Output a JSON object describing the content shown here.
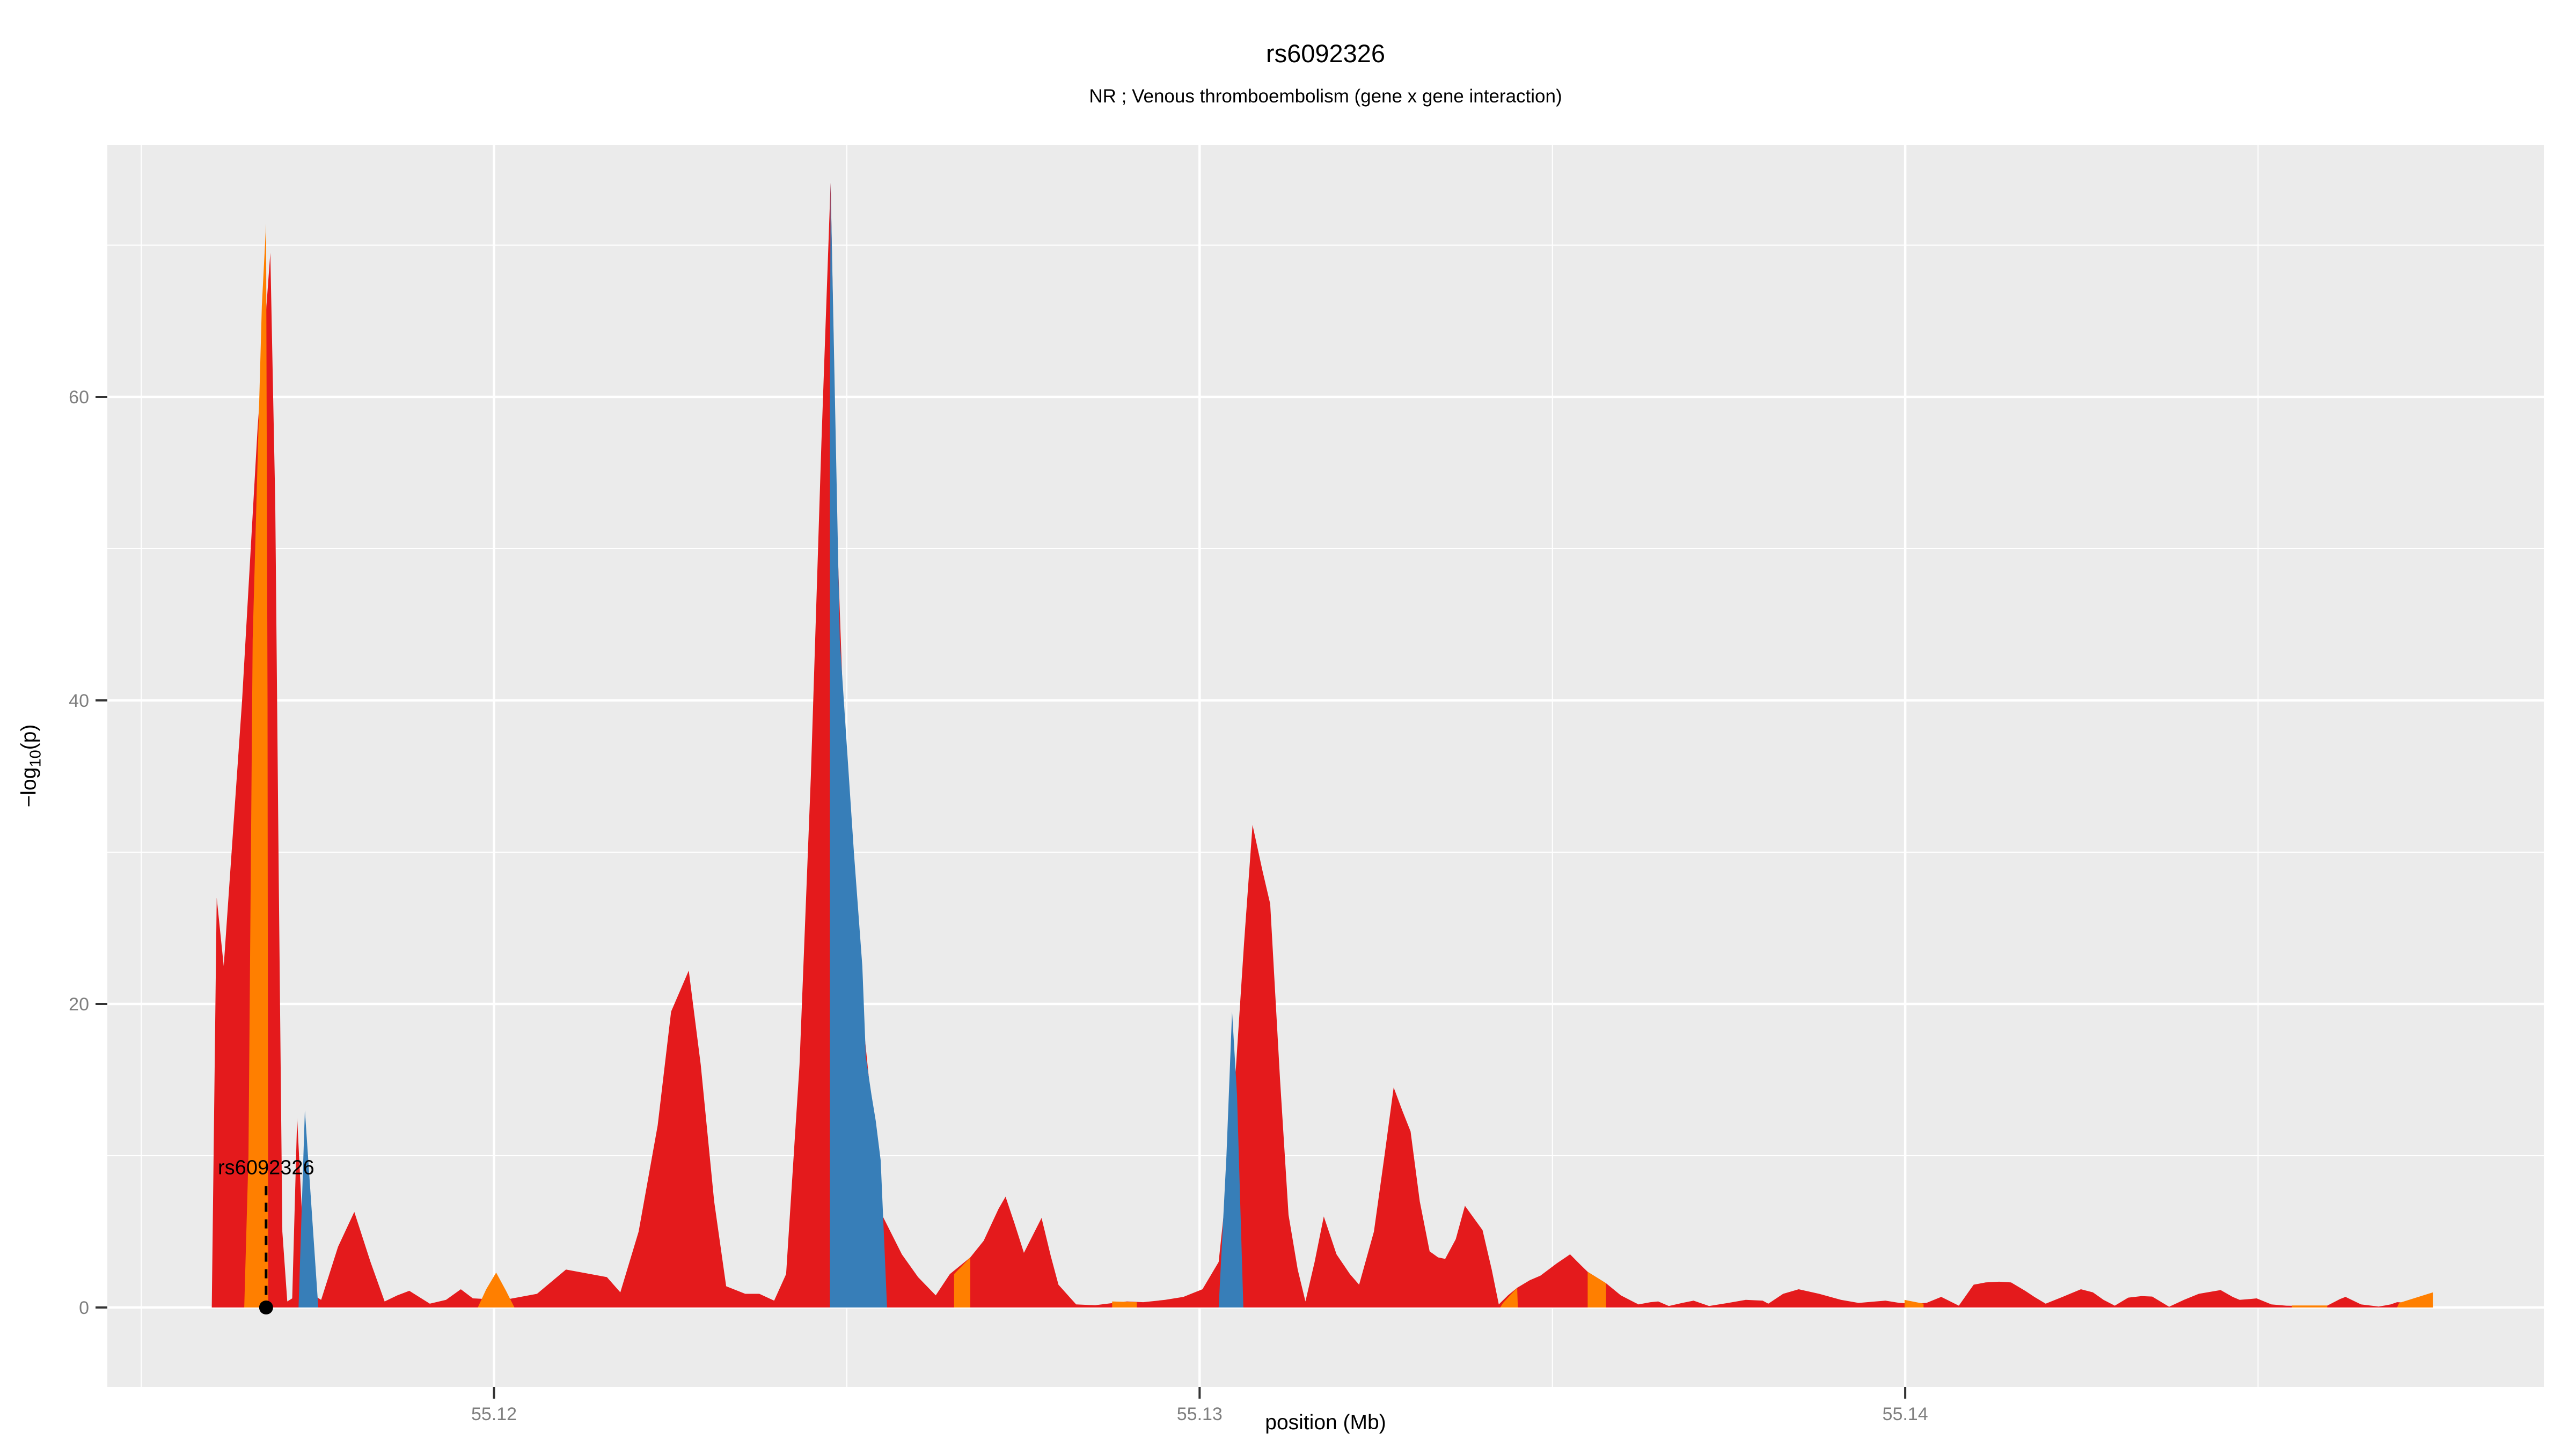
{
  "header": {
    "title": "rs6092326",
    "subtitle": "NR ; Venous thromboembolism (gene x gene interaction)"
  },
  "chart_data": {
    "type": "area",
    "title": "rs6092326",
    "subtitle": "NR ; Venous thromboembolism (gene x gene interaction)",
    "xlabel": "position (Mb)",
    "ylabel": "−log10(p)",
    "ylabel_parts": {
      "prefix": "−log",
      "sub": "10",
      "suffix": "(p)"
    },
    "xlim": [
      55.11452,
      55.14905
    ],
    "ylim": [
      -5.23,
      76.61
    ],
    "x_ticks": [
      55.12,
      55.13,
      55.14
    ],
    "x_tick_labels": [
      "55.12",
      "55.13",
      "55.14"
    ],
    "x_minor": [
      55.115,
      55.125,
      55.135,
      55.145
    ],
    "y_ticks": [
      0,
      20,
      40,
      60
    ],
    "y_tick_labels": [
      "0",
      "20",
      "40",
      "60"
    ],
    "y_minor": [
      10,
      30,
      50,
      70
    ],
    "grid": true,
    "legend": "none",
    "panel_bg": "#EBEBEB",
    "grid_color": "#FFFFFF",
    "tick_color": "#333333",
    "tick_label_color": "#7F7F7F",
    "annotation": {
      "label": "rs6092326",
      "x": 55.11677,
      "y": 0,
      "line_top_value": 8,
      "point_color": "#000000"
    },
    "series": [
      {
        "name": "red",
        "color": "#E41A1C",
        "segments": [
          [
            [
              55.116,
              0
            ],
            [
              55.11607,
              27
            ],
            [
              55.11617,
              22.5
            ],
            [
              55.11643,
              40
            ],
            [
              55.11665,
              58
            ],
            [
              55.11683,
              69.5
            ],
            [
              55.1169,
              53
            ],
            [
              55.11695,
              28
            ],
            [
              55.117,
              5
            ],
            [
              55.11707,
              0.4
            ],
            [
              55.11714,
              0.6
            ],
            [
              55.11721,
              12.5
            ],
            [
              55.11728,
              6
            ],
            [
              55.11738,
              1
            ],
            [
              55.11755,
              0.5
            ],
            [
              55.11779,
              4
            ],
            [
              55.11802,
              6.3
            ],
            [
              55.11825,
              3
            ],
            [
              55.11845,
              0.4
            ],
            [
              55.11863,
              0.8
            ],
            [
              55.1188,
              1.1
            ],
            [
              55.11909,
              0.25
            ],
            [
              55.11932,
              0.5
            ],
            [
              55.11953,
              1.2
            ],
            [
              55.1197,
              0.6
            ],
            [
              55.11992,
              0.55
            ],
            [
              55.12015,
              0.5
            ],
            [
              55.12061,
              0.9
            ],
            [
              55.12102,
              2.5
            ],
            [
              55.12137,
              2.2
            ],
            [
              55.1216,
              2.0
            ],
            [
              55.12179,
              1.0
            ],
            [
              55.12205,
              5
            ],
            [
              55.12232,
              12
            ],
            [
              55.12251,
              19.5
            ],
            [
              55.12276,
              22.2
            ],
            [
              55.12293,
              16
            ],
            [
              55.12312,
              7
            ],
            [
              55.12329,
              1.4
            ],
            [
              55.12356,
              0.9
            ],
            [
              55.12376,
              0.9
            ],
            [
              55.12397,
              0.45
            ],
            [
              55.12414,
              2.2
            ],
            [
              55.12433,
              16
            ],
            [
              55.12449,
              35
            ],
            [
              55.12464,
              57
            ],
            [
              55.12477,
              74.1
            ],
            [
              55.12487,
              50
            ],
            [
              55.12502,
              30
            ],
            [
              55.12525,
              18
            ],
            [
              55.12551,
              6
            ],
            [
              55.12578,
              3.5
            ],
            [
              55.12601,
              2
            ],
            [
              55.12626,
              0.8
            ],
            [
              55.12646,
              2.2
            ],
            [
              55.12675,
              3.3
            ],
            [
              55.12694,
              4.4
            ],
            [
              55.12715,
              6.5
            ],
            [
              55.12725,
              7.3
            ],
            [
              55.12738,
              5.5
            ],
            [
              55.12751,
              3.6
            ],
            [
              55.12764,
              4.8
            ],
            [
              55.12776,
              5.9
            ],
            [
              55.12789,
              3.4
            ],
            [
              55.128,
              1.5
            ],
            [
              55.12825,
              0.2
            ],
            [
              55.12852,
              0.15
            ],
            [
              55.12878,
              0.3
            ],
            [
              55.12897,
              0.4
            ],
            [
              55.1292,
              0.35
            ],
            [
              55.12951,
              0.5
            ],
            [
              55.12977,
              0.7
            ],
            [
              55.13004,
              1.2
            ],
            [
              55.13027,
              3
            ],
            [
              55.13043,
              10
            ],
            [
              55.13051,
              15.5
            ],
            [
              55.13063,
              24
            ],
            [
              55.13075,
              31.8
            ],
            [
              55.13089,
              28.8
            ],
            [
              55.131,
              26.6
            ],
            [
              55.13114,
              15
            ],
            [
              55.13126,
              6.1
            ],
            [
              55.13139,
              2.5
            ],
            [
              55.1315,
              0.4
            ],
            [
              55.13163,
              3
            ],
            [
              55.13176,
              6.0
            ],
            [
              55.13194,
              3.5
            ],
            [
              55.13213,
              2.2
            ],
            [
              55.13226,
              1.5
            ],
            [
              55.13247,
              5
            ],
            [
              55.13262,
              10
            ],
            [
              55.13275,
              14.5
            ],
            [
              55.13287,
              13
            ],
            [
              55.13299,
              11.6
            ],
            [
              55.13312,
              7
            ],
            [
              55.13326,
              3.7
            ],
            [
              55.13338,
              3.3
            ],
            [
              55.13348,
              3.2
            ],
            [
              55.13363,
              4.5
            ],
            [
              55.13376,
              6.7
            ],
            [
              55.1339,
              5.8
            ],
            [
              55.13401,
              5.1
            ],
            [
              55.13414,
              2.5
            ],
            [
              55.13424,
              0.2
            ],
            [
              55.13437,
              0.8
            ],
            [
              55.1345,
              1.3
            ],
            [
              55.13468,
              1.8
            ],
            [
              55.13483,
              2.1
            ],
            [
              55.13506,
              2.9
            ],
            [
              55.13525,
              3.5
            ],
            [
              55.1354,
              2.8
            ],
            [
              55.1355,
              2.35
            ],
            [
              55.13576,
              1.6
            ],
            [
              55.13597,
              0.8
            ],
            [
              55.13622,
              0.2
            ],
            [
              55.13639,
              0.35
            ],
            [
              55.1365,
              0.4
            ],
            [
              55.13665,
              0.1
            ],
            [
              55.13684,
              0.3
            ],
            [
              55.137,
              0.45
            ],
            [
              55.13722,
              0.1
            ],
            [
              55.13749,
              0.3
            ],
            [
              55.13774,
              0.5
            ],
            [
              55.13798,
              0.45
            ],
            [
              55.13806,
              0.25
            ],
            [
              55.13827,
              0.9
            ],
            [
              55.13849,
              1.2
            ],
            [
              55.13878,
              0.9
            ],
            [
              55.13909,
              0.5
            ],
            [
              55.13934,
              0.3
            ],
            [
              55.13958,
              0.4
            ],
            [
              55.13972,
              0.45
            ],
            [
              55.13992,
              0.3
            ],
            [
              55.14011,
              0.25
            ],
            [
              55.1403,
              0.3
            ],
            [
              55.14051,
              0.7
            ],
            [
              55.14076,
              0.12
            ],
            [
              55.14097,
              1.5
            ],
            [
              55.14114,
              1.65
            ],
            [
              55.14133,
              1.7
            ],
            [
              55.1415,
              1.65
            ],
            [
              55.1417,
              1.1
            ],
            [
              55.14183,
              0.7
            ],
            [
              55.14199,
              0.25
            ],
            [
              55.14223,
              0.7
            ],
            [
              55.14249,
              1.2
            ],
            [
              55.14266,
              1.0
            ],
            [
              55.14281,
              0.5
            ],
            [
              55.14297,
              0.12
            ],
            [
              55.14316,
              0.65
            ],
            [
              55.14335,
              0.75
            ],
            [
              55.1435,
              0.72
            ],
            [
              55.14374,
              0.05
            ],
            [
              55.14395,
              0.5
            ],
            [
              55.14416,
              0.9
            ],
            [
              55.14447,
              1.15
            ],
            [
              55.14464,
              0.7
            ],
            [
              55.14474,
              0.5
            ],
            [
              55.14487,
              0.55
            ],
            [
              55.14498,
              0.6
            ],
            [
              55.14519,
              0.2
            ],
            [
              55.1454,
              0.12
            ],
            [
              55.1457,
              0.1
            ],
            [
              55.14598,
              0.12
            ],
            [
              55.14616,
              0.55
            ],
            [
              55.14624,
              0.7
            ],
            [
              55.14646,
              0.2
            ],
            [
              55.14671,
              0.06
            ],
            [
              55.14688,
              0.2
            ],
            [
              55.14697,
              0.35
            ],
            [
              55.14722,
              0.3
            ],
            [
              55.14748,
              0.25
            ],
            [
              55.14748,
              0
            ]
          ]
        ]
      },
      {
        "name": "orange",
        "color": "#FF7F00",
        "segments": [
          [
            [
              55.11646,
              0
            ],
            [
              55.11652,
              10
            ],
            [
              55.11658,
              44
            ],
            [
              55.11671,
              66
            ],
            [
              55.11677,
              71.4
            ],
            [
              55.11679,
              40
            ],
            [
              55.1168,
              0
            ]
          ],
          [
            [
              55.11977,
              0
            ],
            [
              55.11989,
              1.2
            ],
            [
              55.12003,
              2.3
            ],
            [
              55.12017,
              1.1
            ],
            [
              55.12029,
              0
            ]
          ],
          [
            [
              55.12652,
              0
            ],
            [
              55.12652,
              2.2
            ],
            [
              55.12675,
              3.3
            ],
            [
              55.12675,
              0
            ]
          ],
          [
            [
              55.12876,
              0
            ],
            [
              55.12876,
              0.4
            ],
            [
              55.12911,
              0.35
            ],
            [
              55.12911,
              0
            ]
          ],
          [
            [
              55.13426,
              0
            ],
            [
              55.1343,
              0.3
            ],
            [
              55.1345,
              1.3
            ],
            [
              55.13451,
              0
            ]
          ],
          [
            [
              55.1355,
              0
            ],
            [
              55.1355,
              2.35
            ],
            [
              55.13576,
              1.6
            ],
            [
              55.13576,
              0
            ]
          ],
          [
            [
              55.13999,
              0
            ],
            [
              55.13999,
              0.5
            ],
            [
              55.14026,
              0.25
            ],
            [
              55.14026,
              0
            ]
          ],
          [
            [
              55.14548,
              0
            ],
            [
              55.14548,
              0.13
            ],
            [
              55.14598,
              0.13
            ],
            [
              55.14598,
              0
            ]
          ],
          [
            [
              55.14697,
              0
            ],
            [
              55.147,
              0.3
            ],
            [
              55.14748,
              1.0
            ],
            [
              55.14748,
              0
            ]
          ]
        ]
      },
      {
        "name": "blue",
        "color": "#377EB8",
        "segments": [
          [
            [
              55.11723,
              0
            ],
            [
              55.11732,
              13
            ],
            [
              55.11751,
              0
            ]
          ],
          [
            [
              55.12476,
              0
            ],
            [
              55.12476,
              60
            ],
            [
              55.12477,
              74.1
            ],
            [
              55.1249,
              44
            ],
            [
              55.1251,
              30
            ],
            [
              55.12522,
              22.5
            ],
            [
              55.12527,
              16.5
            ],
            [
              55.12535,
              14
            ],
            [
              55.12541,
              12.3
            ],
            [
              55.12548,
              9.7
            ],
            [
              55.12557,
              0
            ]
          ],
          [
            [
              55.13027,
              0
            ],
            [
              55.13038,
              10
            ],
            [
              55.13046,
              19.5
            ],
            [
              55.13053,
              14
            ],
            [
              55.13062,
              0
            ]
          ]
        ]
      }
    ]
  }
}
